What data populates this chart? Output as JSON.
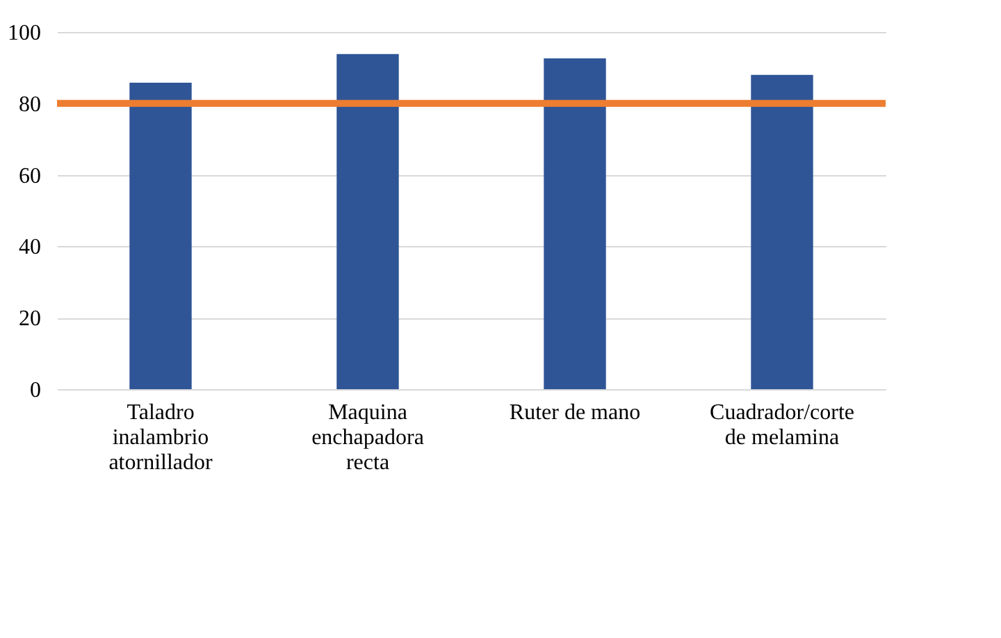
{
  "chart_data": {
    "type": "bar",
    "categories": [
      "Taladro inalambrio atornillador",
      "Maquina enchapadora recta",
      "Ruter de mano",
      "Cuadrador/corte de melamina"
    ],
    "values": [
      85.8,
      93.8,
      92.6,
      88.0
    ],
    "color": "#2f5597",
    "ylim": [
      0,
      100
    ],
    "yticks": [
      0,
      20,
      40,
      60,
      80,
      100
    ],
    "grid": "y",
    "ref_lines": [
      {
        "axis": "y",
        "value": 80,
        "color": "#ed7d31"
      }
    ]
  }
}
